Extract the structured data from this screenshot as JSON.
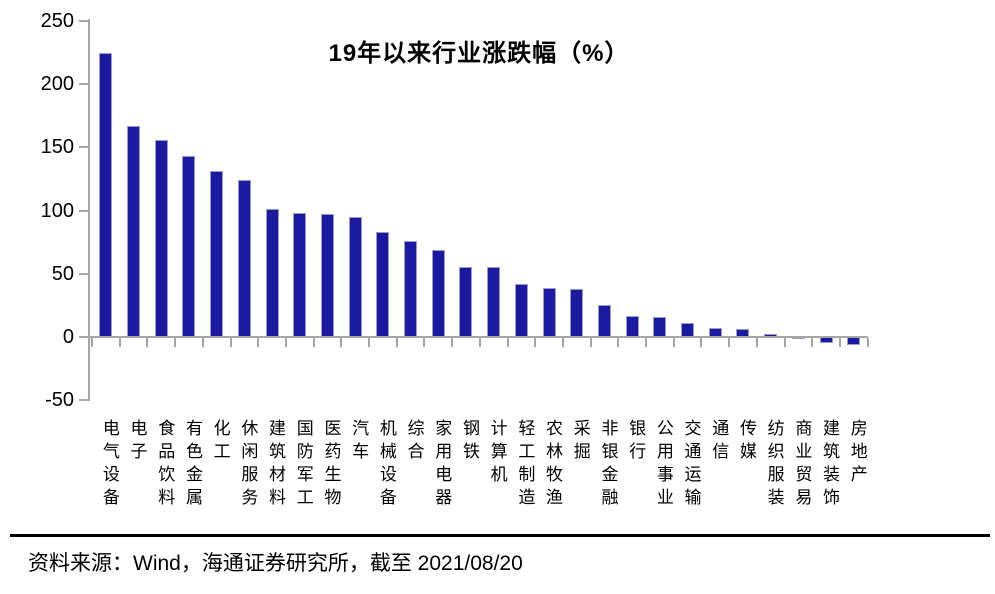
{
  "chart": {
    "title": "19年以来行业涨跌幅（%）"
  },
  "chart_data": {
    "type": "bar",
    "title": "19年以来行业涨跌幅（%）",
    "categories": [
      "电气设备",
      "电子",
      "食品饮料",
      "有色金属",
      "化工",
      "休闲服务",
      "建筑材料",
      "国防军工",
      "医药生物",
      "汽车",
      "机械设备",
      "综合",
      "家用电器",
      "钢铁",
      "计算机",
      "轻工制造",
      "农林牧渔",
      "采掘",
      "非银金融",
      "银行",
      "公用事业",
      "交通运输",
      "通信",
      "传媒",
      "纺织服装",
      "商业贸易",
      "建筑装饰",
      "房地产"
    ],
    "values": [
      225,
      167,
      156,
      143,
      131,
      124,
      101,
      98,
      97,
      95,
      83,
      76,
      69,
      55,
      55,
      42,
      39,
      38,
      25,
      17,
      16,
      11,
      7,
      6,
      2,
      -0.5,
      -5,
      -6
    ],
    "xlabel": "",
    "ylabel": "",
    "ylim": [
      -50,
      250
    ],
    "yticks": [
      250,
      200,
      150,
      100,
      50,
      0,
      -50
    ],
    "grid": false,
    "legend": false,
    "bar_color": "#1a1aa0",
    "bar_border_color": "#9a9ace",
    "axis_color": "#a6a6a6"
  },
  "footer": {
    "source": "资料来源：Wind，海通证券研究所，截至 2021/08/20"
  }
}
